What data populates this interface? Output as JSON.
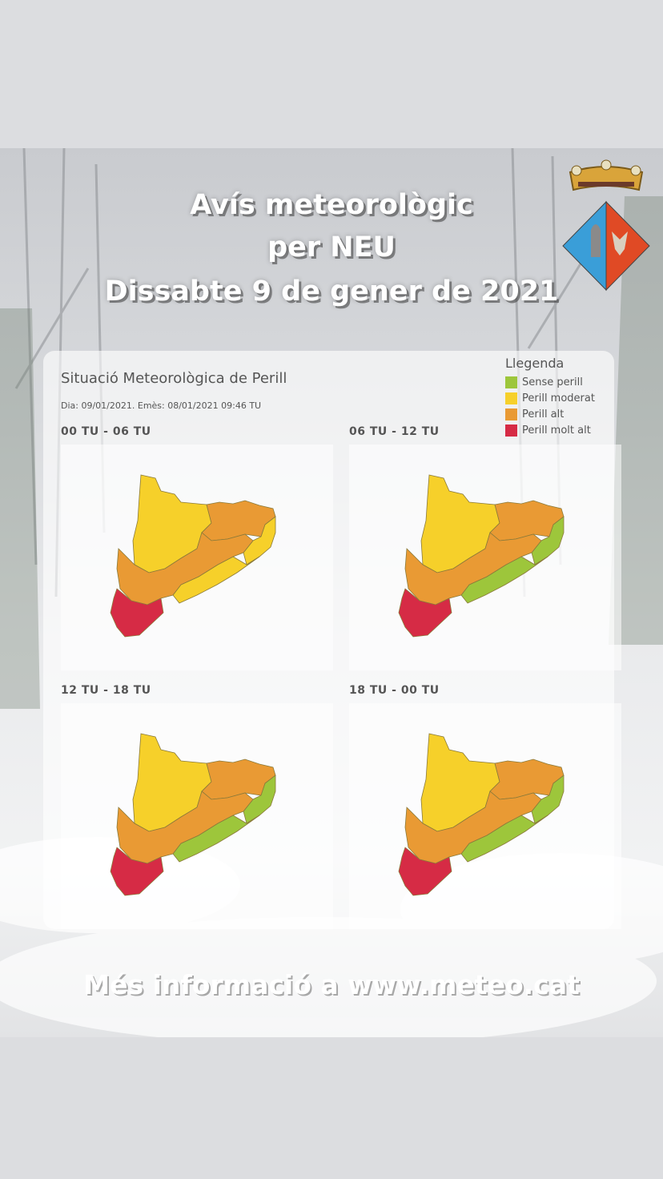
{
  "header": {
    "line1": "Avís meteorològic",
    "line2": "per NEU",
    "line3": "Dissabte 9 de gener de 2021"
  },
  "card": {
    "title": "Situació Meteorològica de Perill",
    "issued": "Dia: 09/01/2021. Emès: 08/01/2021 09:46 TU"
  },
  "legend": {
    "title": "Llegenda",
    "items": [
      {
        "label": "Sense perill",
        "color": "#9dc63b"
      },
      {
        "label": "Perill moderat",
        "color": "#f6d02a"
      },
      {
        "label": "Perill alt",
        "color": "#e99a34"
      },
      {
        "label": "Perill molt alt",
        "color": "#d62b45"
      }
    ]
  },
  "maps": [
    {
      "label": "00 TU - 06 TU",
      "levels": {
        "north": "moderat",
        "northeast": "alt",
        "east": "moderat",
        "coast": "moderat",
        "southwest": "alt",
        "south": "molt_alt"
      }
    },
    {
      "label": "06 TU - 12 TU",
      "levels": {
        "north": "moderat",
        "northeast": "alt",
        "east": "sense",
        "coast": "sense",
        "southwest": "alt",
        "south": "molt_alt"
      }
    },
    {
      "label": "12 TU - 18 TU",
      "levels": {
        "north": "moderat",
        "northeast": "alt",
        "east": "sense",
        "coast": "sense",
        "southwest": "alt",
        "south": "molt_alt"
      }
    },
    {
      "label": "18 TU - 00 TU",
      "levels": {
        "north": "moderat",
        "northeast": "alt",
        "east": "sense",
        "coast": "sense",
        "southwest": "alt",
        "south": "molt_alt"
      }
    }
  ],
  "footer": "Més informació a www.meteo.cat"
}
